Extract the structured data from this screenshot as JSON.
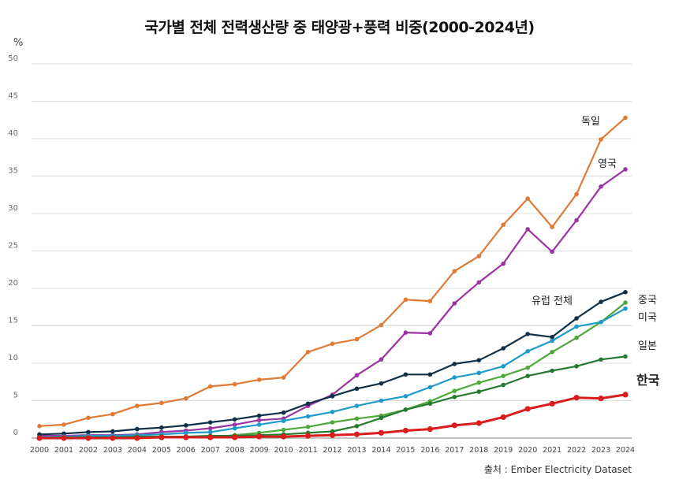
{
  "title": "국가별 전체 전력생산량 중 태양광+풍력 비중(2000-2024년)",
  "source": "출처 : Ember Electricity Dataset",
  "colors": {
    "grid": "#dcdcdc",
    "axis": "#888888"
  },
  "chart_data": {
    "type": "line",
    "ylabel": "%",
    "ylim": [
      0,
      50
    ],
    "yticks": [
      0,
      5,
      10,
      15,
      20,
      25,
      30,
      35,
      40,
      45,
      50
    ],
    "x": [
      2000,
      2001,
      2002,
      2003,
      2004,
      2005,
      2006,
      2007,
      2008,
      2009,
      2010,
      2011,
      2012,
      2013,
      2014,
      2015,
      2016,
      2017,
      2018,
      2019,
      2020,
      2021,
      2022,
      2023,
      2024
    ],
    "grid": true,
    "series": [
      {
        "name": "독일",
        "color": "#e07a36",
        "label_bold": false,
        "values": [
          1.6,
          1.8,
          2.7,
          3.2,
          4.3,
          4.7,
          5.3,
          6.9,
          7.2,
          7.8,
          8.1,
          11.5,
          12.6,
          13.2,
          15.1,
          18.5,
          18.3,
          22.3,
          24.3,
          28.5,
          32.0,
          28.2,
          32.6,
          39.9,
          42.8
        ]
      },
      {
        "name": "영국",
        "color": "#9b34a2",
        "label_bold": false,
        "values": [
          0.3,
          0.3,
          0.4,
          0.4,
          0.5,
          0.8,
          1.0,
          1.3,
          1.8,
          2.4,
          2.6,
          4.3,
          5.8,
          8.4,
          10.5,
          14.1,
          14.0,
          18.0,
          20.8,
          23.3,
          27.9,
          24.9,
          29.1,
          33.6,
          35.9
        ]
      },
      {
        "name": "유럽 전체",
        "color": "#0f3047",
        "label_bold": false,
        "values": [
          0.5,
          0.6,
          0.8,
          0.9,
          1.2,
          1.4,
          1.7,
          2.1,
          2.5,
          3.0,
          3.4,
          4.6,
          5.6,
          6.6,
          7.3,
          8.5,
          8.5,
          9.9,
          10.4,
          12.0,
          13.9,
          13.5,
          16.0,
          18.2,
          19.5
        ]
      },
      {
        "name": "중국",
        "color": "#4fa83c",
        "label_bold": false,
        "values": [
          0.0,
          0.0,
          0.0,
          0.0,
          0.0,
          0.1,
          0.1,
          0.1,
          0.4,
          0.7,
          1.1,
          1.5,
          2.1,
          2.6,
          3.0,
          3.8,
          4.9,
          6.3,
          7.4,
          8.3,
          9.4,
          11.5,
          13.4,
          15.5,
          18.1
        ]
      },
      {
        "name": "미국",
        "color": "#1f9ac9",
        "label_bold": false,
        "values": [
          0.1,
          0.2,
          0.3,
          0.3,
          0.4,
          0.5,
          0.7,
          0.8,
          1.3,
          1.8,
          2.3,
          2.9,
          3.5,
          4.3,
          5.0,
          5.6,
          6.8,
          8.1,
          8.7,
          9.6,
          11.6,
          13.0,
          14.9,
          15.5,
          17.3
        ]
      },
      {
        "name": "일본",
        "color": "#267a30",
        "label_bold": false,
        "values": [
          0.0,
          0.1,
          0.1,
          0.1,
          0.2,
          0.2,
          0.2,
          0.3,
          0.3,
          0.4,
          0.5,
          0.7,
          0.9,
          1.6,
          2.7,
          3.8,
          4.6,
          5.5,
          6.2,
          7.1,
          8.3,
          9.0,
          9.6,
          10.5,
          10.9
        ]
      },
      {
        "name": "한국",
        "color": "#d91c1c",
        "label_bold": true,
        "values": [
          0.0,
          0.0,
          0.0,
          0.0,
          0.0,
          0.1,
          0.1,
          0.1,
          0.1,
          0.2,
          0.2,
          0.3,
          0.4,
          0.5,
          0.7,
          1.0,
          1.2,
          1.7,
          2.0,
          2.8,
          3.9,
          4.6,
          5.4,
          5.3,
          5.8
        ]
      }
    ]
  }
}
